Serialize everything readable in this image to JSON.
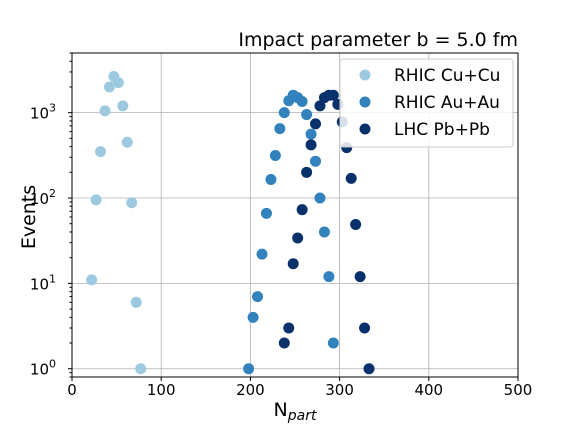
{
  "chart_data": {
    "type": "scatter",
    "title": "Impact parameter b = 5.0 fm",
    "xlabel": "N",
    "xlabel_sub": "part",
    "ylabel": "Events",
    "xlim": [
      0,
      500
    ],
    "ylim": [
      0.8,
      5000
    ],
    "yscale": "log",
    "grid": true,
    "legend_position": "top-right",
    "x_ticks": [
      0,
      100,
      200,
      300,
      400,
      500
    ],
    "x_tick_labels": [
      "0",
      "100",
      "200",
      "300",
      "400",
      "500"
    ],
    "y_ticks": [
      1,
      10,
      100,
      1000
    ],
    "y_tick_bases": [
      "10",
      "10",
      "10",
      "10"
    ],
    "y_tick_exponents": [
      "0",
      "1",
      "2",
      "3"
    ],
    "series": [
      {
        "name": "RHIC Cu+Cu",
        "color": "#9ecae1",
        "points": [
          [
            22,
            11
          ],
          [
            27,
            95
          ],
          [
            32,
            350
          ],
          [
            37,
            1050
          ],
          [
            42,
            2000
          ],
          [
            47,
            2650
          ],
          [
            52,
            2250
          ],
          [
            57,
            1200
          ],
          [
            62,
            450
          ],
          [
            67,
            88
          ],
          [
            72,
            6
          ],
          [
            77,
            1
          ]
        ]
      },
      {
        "name": "RHIC Au+Au",
        "color": "#3182bd",
        "points": [
          [
            198,
            1
          ],
          [
            203,
            4
          ],
          [
            208,
            7
          ],
          [
            213,
            22
          ],
          [
            218,
            66
          ],
          [
            223,
            165
          ],
          [
            228,
            315
          ],
          [
            233,
            650
          ],
          [
            238,
            1000
          ],
          [
            243,
            1380
          ],
          [
            248,
            1600
          ],
          [
            253,
            1500
          ],
          [
            258,
            1350
          ],
          [
            263,
            950
          ],
          [
            268,
            560
          ],
          [
            273,
            270
          ],
          [
            278,
            100
          ],
          [
            283,
            40
          ],
          [
            288,
            12
          ],
          [
            293,
            2
          ]
        ]
      },
      {
        "name": "LHC Pb+Pb",
        "color": "#08306b",
        "points": [
          [
            238,
            2
          ],
          [
            243,
            3
          ],
          [
            248,
            17
          ],
          [
            253,
            34
          ],
          [
            258,
            73
          ],
          [
            263,
            200
          ],
          [
            268,
            420
          ],
          [
            273,
            740
          ],
          [
            278,
            1200
          ],
          [
            283,
            1500
          ],
          [
            288,
            1600
          ],
          [
            293,
            1600
          ],
          [
            298,
            1250
          ],
          [
            303,
            780
          ],
          [
            308,
            390
          ],
          [
            313,
            170
          ],
          [
            318,
            49
          ],
          [
            323,
            12
          ],
          [
            328,
            3
          ],
          [
            333,
            1
          ]
        ]
      }
    ]
  }
}
